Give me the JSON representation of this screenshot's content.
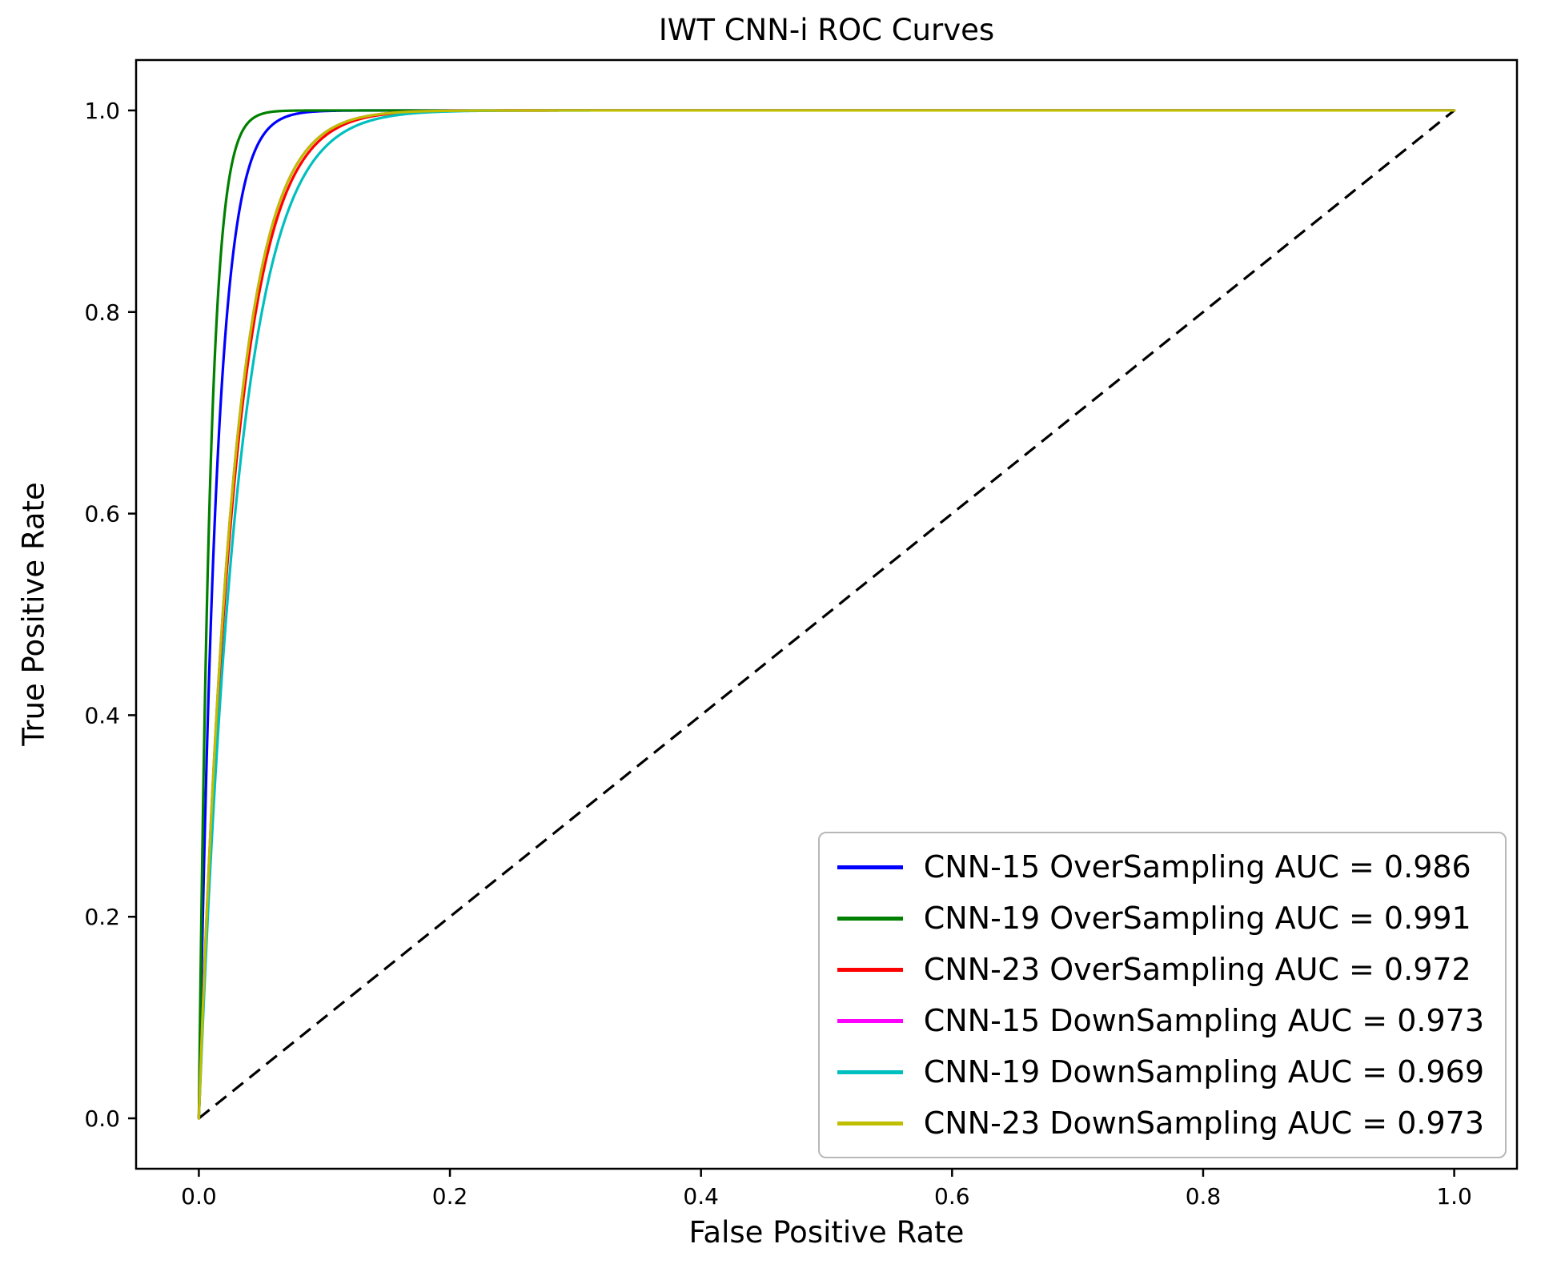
{
  "figure": {
    "title": "IWT CNN-i ROC Curves",
    "xlabel": "False Positive Rate",
    "ylabel": "True Positive Rate"
  },
  "chart_data": {
    "type": "line",
    "title": "IWT CNN-i ROC Curves",
    "xlabel": "False Positive Rate",
    "ylabel": "True Positive Rate",
    "xlim": [
      -0.05,
      1.05
    ],
    "ylim": [
      -0.05,
      1.05
    ],
    "grid": false,
    "legend_position": "lower right",
    "x_tick_values": [
      0.0,
      0.2,
      0.4,
      0.6,
      0.8,
      1.0
    ],
    "x_tick_labels": [
      "0.0",
      "0.2",
      "0.4",
      "0.6",
      "0.8",
      "1.0"
    ],
    "y_tick_values": [
      0.0,
      0.2,
      0.4,
      0.6,
      0.8,
      1.0
    ],
    "y_tick_labels": [
      "0.0",
      "0.2",
      "0.4",
      "0.6",
      "0.8",
      "1.0"
    ],
    "series": [
      {
        "id": "cnn-15-oversampling",
        "model": "CNN-15",
        "sampling": "OverSampling",
        "auc": 0.986,
        "name": "CNN-15 OverSampling AUC = 0.986",
        "color": "#0000ff",
        "curve": "ROC curve from (0,0) to (1,1), concave, reaching TPR ~1.0 near FPR 0.12"
      },
      {
        "id": "cnn-19-oversampling",
        "model": "CNN-19",
        "sampling": "OverSampling",
        "auc": 0.991,
        "name": "CNN-19 OverSampling AUC = 0.991",
        "color": "#008000",
        "curve": "ROC curve from (0,0) to (1,1), steepest rise, reaching TPR ~1.0 near FPR 0.09"
      },
      {
        "id": "cnn-23-oversampling",
        "model": "CNN-23",
        "sampling": "OverSampling",
        "auc": 0.972,
        "name": "CNN-23 OverSampling AUC = 0.972",
        "color": "#ff0000",
        "curve": "ROC curve from (0,0) to (1,1), reaching TPR ~1.0 near FPR 0.2"
      },
      {
        "id": "cnn-15-downsampling",
        "model": "CNN-15",
        "sampling": "DownSampling",
        "auc": 0.973,
        "name": "CNN-15 DownSampling AUC = 0.973",
        "color": "#ff00ff",
        "curve": "ROC curve from (0,0) to (1,1), reaching TPR ~1.0 near FPR 0.22"
      },
      {
        "id": "cnn-19-downsampling",
        "model": "CNN-19",
        "sampling": "DownSampling",
        "auc": 0.969,
        "name": "CNN-19 DownSampling AUC = 0.969",
        "color": "#00bfbf",
        "curve": "ROC curve from (0,0) to (1,1), slowest rise, reaching TPR ~1.0 near FPR 0.25"
      },
      {
        "id": "cnn-23-downsampling",
        "model": "CNN-23",
        "sampling": "DownSampling",
        "auc": 0.973,
        "name": "CNN-23 DownSampling AUC = 0.973",
        "color": "#bfbf00",
        "curve": "ROC curve from (0,0) to (1,1), reaching TPR ~1.0 near FPR 0.23"
      }
    ],
    "reference_line": {
      "style": "dashed",
      "color": "#000000",
      "from": [
        0,
        0
      ],
      "to": [
        1,
        1
      ],
      "meaning": "chance diagonal"
    }
  }
}
